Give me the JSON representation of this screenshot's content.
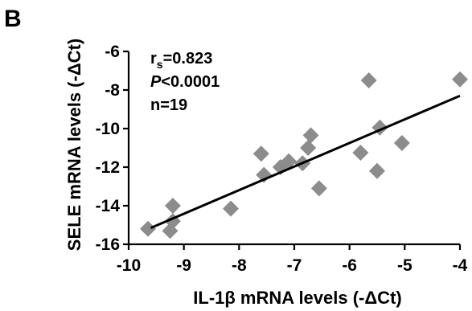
{
  "panel_label": "B",
  "colors": {
    "marker": "#8c8c8c",
    "line": "#000000",
    "text": "#000000"
  },
  "chart_data": {
    "type": "scatter",
    "xlabel": "IL-1β mRNA levels (-ΔCt)",
    "ylabel": "SELE mRNA levels (-ΔCt)",
    "xlim": [
      -10,
      -4
    ],
    "ylim": [
      -16,
      -6
    ],
    "xticks": [
      -10,
      -9,
      -8,
      -7,
      -6,
      -5,
      -4
    ],
    "yticks": [
      -16,
      -14,
      -12,
      -10,
      -8,
      -6
    ],
    "xtick_labels": [
      "-10",
      "-9",
      "-8",
      "-7",
      "-6",
      "-5",
      "-4"
    ],
    "ytick_labels": [
      "-16",
      "-14",
      "-12",
      "-10",
      "-8",
      "-6"
    ],
    "marker": "diamond",
    "grid": false,
    "stats": {
      "rs_symbol": "r",
      "rs_subscript": "s",
      "rs_value": "=0.823",
      "p_symbol": "P",
      "p_value": "<0.0001",
      "n_text": "n=19"
    },
    "points": [
      {
        "x": -9.65,
        "y": -15.2
      },
      {
        "x": -9.25,
        "y": -15.3
      },
      {
        "x": -9.2,
        "y": -14.8
      },
      {
        "x": -9.2,
        "y": -14.0
      },
      {
        "x": -8.15,
        "y": -14.15
      },
      {
        "x": -7.6,
        "y": -11.3
      },
      {
        "x": -7.55,
        "y": -12.4
      },
      {
        "x": -7.25,
        "y": -12.0
      },
      {
        "x": -7.1,
        "y": -11.7
      },
      {
        "x": -6.85,
        "y": -11.8
      },
      {
        "x": -6.75,
        "y": -11.0
      },
      {
        "x": -6.7,
        "y": -10.35
      },
      {
        "x": -6.55,
        "y": -13.1
      },
      {
        "x": -5.8,
        "y": -11.25
      },
      {
        "x": -5.65,
        "y": -7.5
      },
      {
        "x": -5.5,
        "y": -12.2
      },
      {
        "x": -5.45,
        "y": -9.95
      },
      {
        "x": -5.05,
        "y": -10.75
      },
      {
        "x": -4.0,
        "y": -7.45
      }
    ],
    "fit_line": {
      "x": [
        -9.6,
        -4.0
      ],
      "y": [
        -15.15,
        -8.3
      ]
    }
  }
}
